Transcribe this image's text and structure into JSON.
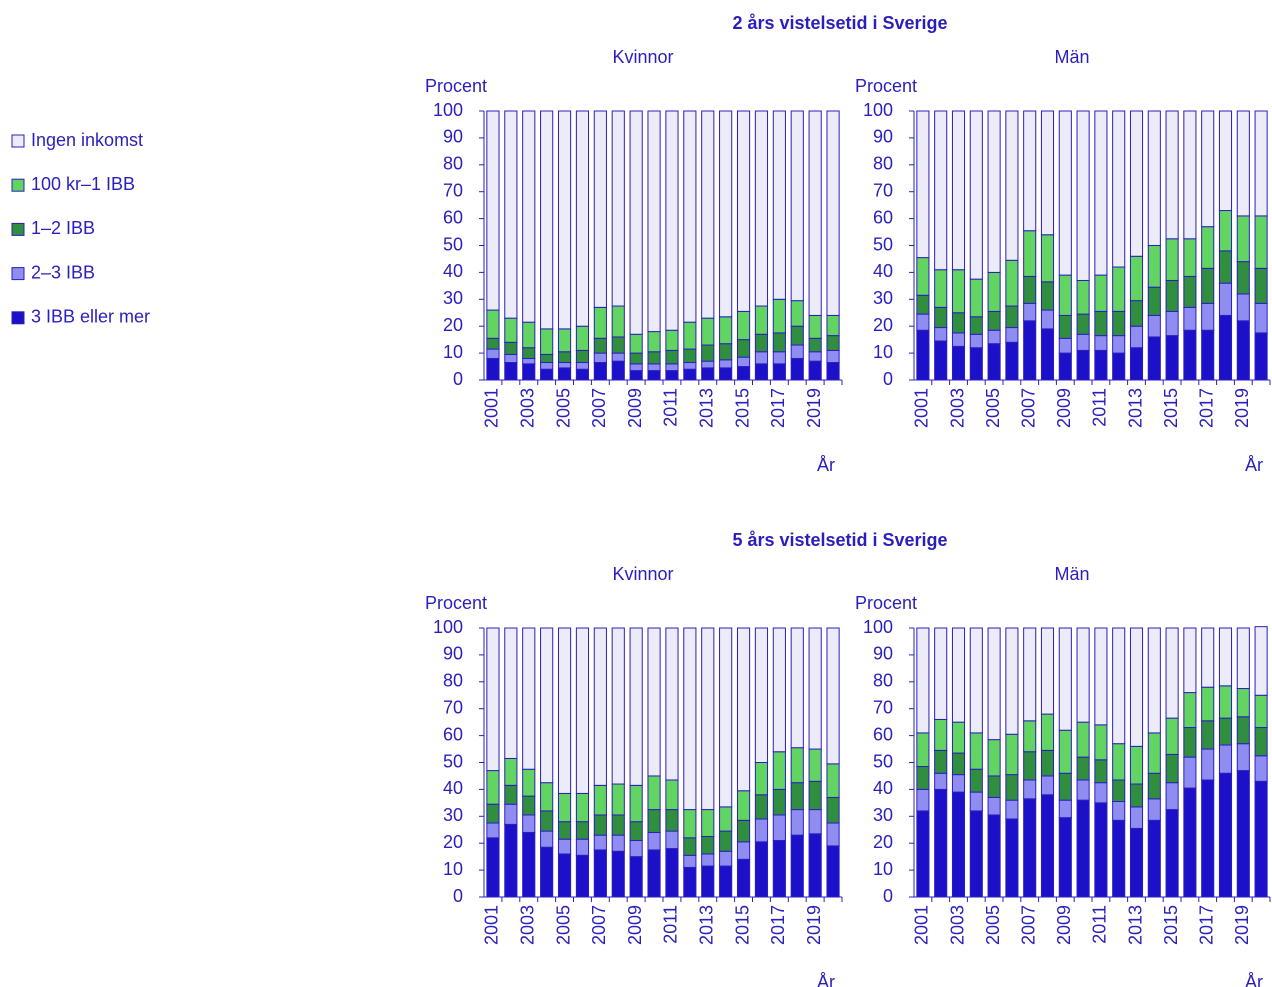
{
  "chart_data": [
    {
      "type": "bar",
      "stacked": true,
      "suptitle": "2 års vistelsetid i Sverige",
      "title": "Kvinnor",
      "ylabel": "Procent",
      "xlabel": "År",
      "categories": [
        "2001",
        null,
        "2003",
        null,
        "2005",
        null,
        "2007",
        null,
        "2009",
        null,
        "2011",
        null,
        "2013",
        null,
        "2015",
        null,
        "2017",
        null,
        "2019",
        null
      ],
      "ylim": [
        0,
        100
      ],
      "yticks": [
        0,
        10,
        20,
        30,
        40,
        50,
        60,
        70,
        80,
        90,
        100
      ],
      "series": [
        {
          "name": "3 IBB eller mer",
          "color": "#1c10c9",
          "values": [
            8,
            6.5,
            6,
            4,
            4.5,
            4,
            6.5,
            7,
            3.5,
            3.5,
            3.5,
            4,
            4.5,
            4.5,
            5,
            6,
            6,
            8,
            7,
            6.5
          ]
        },
        {
          "name": "2–3 IBB",
          "color": "#8f8cf2",
          "values": [
            3.5,
            3,
            2,
            2.5,
            2,
            2.5,
            3.5,
            3,
            2.5,
            2.5,
            2.5,
            2.5,
            2.5,
            3,
            3.5,
            4.5,
            4.5,
            5,
            3.5,
            4.5
          ]
        },
        {
          "name": "1–2 IBB",
          "color": "#2f8f3f",
          "values": [
            4,
            4.5,
            4,
            3,
            4,
            4.5,
            5.5,
            6,
            4,
            4.5,
            5,
            5,
            6,
            6,
            6.5,
            6.5,
            7,
            7,
            5,
            5.5
          ]
        },
        {
          "name": "100 kr–1 IBB",
          "color": "#62d462",
          "values": [
            10.5,
            9,
            9.5,
            9.5,
            8.5,
            9,
            11.5,
            11.5,
            7,
            7.5,
            7.5,
            10,
            10,
            10,
            10.5,
            10.5,
            12.5,
            9.5,
            8.5,
            7.5
          ]
        },
        {
          "name": "Ingen inkomst",
          "color": "#ececf9",
          "values": [
            74,
            77,
            78.5,
            81,
            81,
            80,
            73,
            72.5,
            83,
            82,
            81.5,
            78.5,
            77,
            76.5,
            74.5,
            72.5,
            70,
            70.5,
            76,
            76
          ]
        }
      ]
    },
    {
      "type": "bar",
      "stacked": true,
      "title": "Män",
      "ylabel": "Procent",
      "xlabel": "År",
      "categories": [
        "2001",
        null,
        "2003",
        null,
        "2005",
        null,
        "2007",
        null,
        "2009",
        null,
        "2011",
        null,
        "2013",
        null,
        "2015",
        null,
        "2017",
        null,
        "2019",
        null
      ],
      "ylim": [
        0,
        100
      ],
      "yticks": [
        0,
        10,
        20,
        30,
        40,
        50,
        60,
        70,
        80,
        90,
        100
      ],
      "series": [
        {
          "name": "3 IBB eller mer",
          "color": "#1c10c9",
          "values": [
            18.5,
            14.5,
            12.5,
            12,
            13.5,
            14,
            22,
            19,
            10,
            11,
            11,
            10,
            12,
            16,
            16.5,
            18.5,
            18.5,
            24,
            22,
            17.5
          ]
        },
        {
          "name": "2–3 IBB",
          "color": "#8f8cf2",
          "values": [
            6,
            5,
            5,
            5,
            5,
            5.5,
            6.5,
            7,
            5.5,
            6,
            5.5,
            6.5,
            8,
            8,
            9,
            8.5,
            10,
            12,
            10,
            11
          ]
        },
        {
          "name": "1–2 IBB",
          "color": "#2f8f3f",
          "values": [
            7,
            7.5,
            7.5,
            6.5,
            7,
            8,
            10,
            10.5,
            8.5,
            7.5,
            9,
            9,
            9.5,
            10.5,
            11.5,
            11.5,
            13,
            12,
            12,
            13
          ]
        },
        {
          "name": "100 kr–1 IBB",
          "color": "#62d462",
          "values": [
            14,
            14,
            16,
            14,
            14.5,
            17,
            17,
            17.5,
            15,
            12.5,
            13.5,
            16.5,
            16.5,
            15.5,
            15.5,
            14,
            15.5,
            15,
            17,
            19.5
          ]
        },
        {
          "name": "Ingen inkomst",
          "color": "#ececf9",
          "values": [
            54.5,
            59,
            59,
            62.5,
            60,
            55.5,
            44.5,
            46,
            61,
            63,
            61,
            58,
            54,
            50,
            47.5,
            47.5,
            43,
            37,
            39,
            39
          ]
        }
      ]
    },
    {
      "type": "bar",
      "stacked": true,
      "suptitle": "5 års vistelsetid i Sverige",
      "title": "Kvinnor",
      "ylabel": "Procent",
      "xlabel": "År",
      "categories": [
        "2001",
        null,
        "2003",
        null,
        "2005",
        null,
        "2007",
        null,
        "2009",
        null,
        "2011",
        null,
        "2013",
        null,
        "2015",
        null,
        "2017",
        null,
        "2019",
        null
      ],
      "ylim": [
        0,
        100
      ],
      "yticks": [
        0,
        10,
        20,
        30,
        40,
        50,
        60,
        70,
        80,
        90,
        100
      ],
      "series": [
        {
          "name": "3 IBB eller mer",
          "color": "#1c10c9",
          "values": [
            22,
            27,
            24,
            18.5,
            16,
            15.5,
            17.5,
            17,
            15,
            17.5,
            18,
            11,
            11.5,
            11.5,
            14,
            20.5,
            21,
            23,
            23.5,
            19
          ]
        },
        {
          "name": "2–3 IBB",
          "color": "#8f8cf2",
          "values": [
            5.5,
            7.5,
            6.5,
            6,
            5.5,
            6,
            5.5,
            6,
            6,
            6.5,
            6.5,
            4.5,
            4.5,
            5.5,
            6.5,
            8.5,
            9.5,
            9.5,
            9,
            8.5
          ]
        },
        {
          "name": "1–2 IBB",
          "color": "#2f8f3f",
          "values": [
            7,
            7,
            7,
            7.5,
            6.5,
            6.5,
            7.5,
            7.5,
            7,
            8.5,
            8,
            6.5,
            6.5,
            7.5,
            8,
            9,
            9.5,
            10,
            10.5,
            9.5
          ]
        },
        {
          "name": "100 kr–1 IBB",
          "color": "#62d462",
          "values": [
            12.5,
            10,
            10,
            10.5,
            10.5,
            10.5,
            11,
            11.5,
            13.5,
            12.5,
            11,
            10.5,
            10,
            9,
            11,
            12,
            14,
            13,
            12,
            12.5
          ]
        },
        {
          "name": "Ingen inkomst",
          "color": "#ececf9",
          "values": [
            53,
            48.5,
            52.5,
            57.5,
            61.5,
            61.5,
            58.5,
            58,
            58.5,
            55,
            56.5,
            67.5,
            67.5,
            66.5,
            60.5,
            50,
            46,
            44.5,
            45,
            50.5
          ]
        }
      ]
    },
    {
      "type": "bar",
      "stacked": true,
      "title": "Män",
      "ylabel": "Procent",
      "xlabel": "År",
      "categories": [
        "2001",
        null,
        "2003",
        null,
        "2005",
        null,
        "2007",
        null,
        "2009",
        null,
        "2011",
        null,
        "2013",
        null,
        "2015",
        null,
        "2017",
        null,
        "2019",
        null
      ],
      "ylim": [
        0,
        100
      ],
      "yticks": [
        0,
        10,
        20,
        30,
        40,
        50,
        60,
        70,
        80,
        90,
        100
      ],
      "series": [
        {
          "name": "3 IBB eller mer",
          "color": "#1c10c9",
          "values": [
            32,
            40,
            39,
            32,
            30.5,
            29,
            36.5,
            38,
            29.5,
            36,
            35,
            28.5,
            25.5,
            28.5,
            32.5,
            40.5,
            43.5,
            46,
            47,
            43
          ]
        },
        {
          "name": "2–3 IBB",
          "color": "#8f8cf2",
          "values": [
            8,
            6,
            6.5,
            7,
            6.5,
            7,
            7,
            7,
            6.5,
            7.5,
            7.5,
            7,
            8,
            8,
            10,
            11.5,
            11.5,
            10.5,
            10,
            9.5
          ]
        },
        {
          "name": "1–2 IBB",
          "color": "#2f8f3f",
          "values": [
            8.5,
            8.5,
            8,
            8.5,
            8,
            9.5,
            10.5,
            9.5,
            10,
            8.5,
            8.5,
            8,
            8.5,
            9.5,
            10.5,
            11,
            10.5,
            10,
            10,
            10.5
          ]
        },
        {
          "name": "100 kr–1 IBB",
          "color": "#62d462",
          "values": [
            12.5,
            11.5,
            11.5,
            13.5,
            13.5,
            15,
            11.5,
            13.5,
            16,
            13,
            13,
            13.5,
            14,
            15,
            13.5,
            13,
            12.5,
            12,
            10.5,
            12
          ]
        },
        {
          "name": "Ingen inkomst",
          "color": "#ececf9",
          "values": [
            39,
            34,
            35,
            39,
            41.5,
            39.5,
            34.5,
            32,
            38,
            35,
            36,
            43,
            44,
            39,
            33.5,
            24,
            22,
            21.5,
            22.5,
            25.5
          ]
        }
      ]
    }
  ]
}
